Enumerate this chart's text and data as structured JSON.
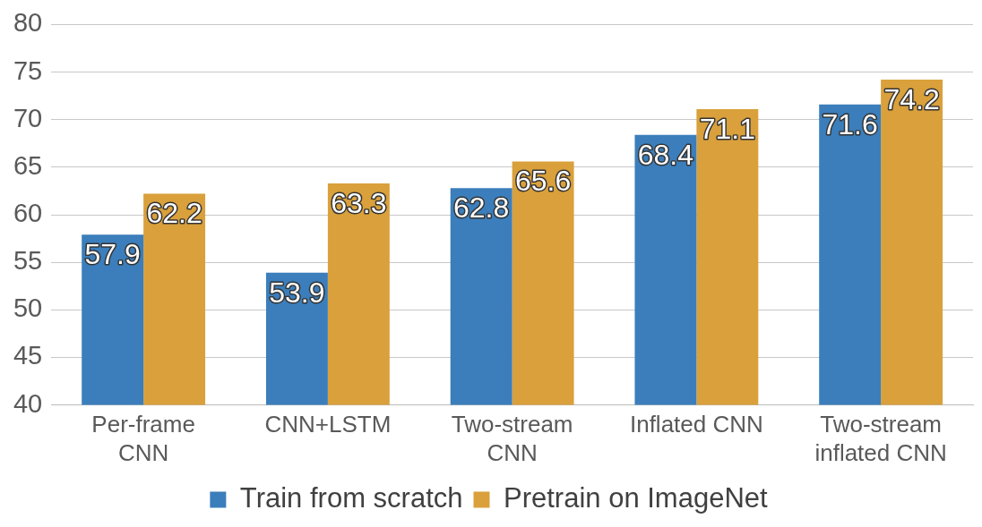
{
  "chart_data": {
    "type": "bar",
    "categories": [
      "Per-frame CNN",
      "CNN+LSTM",
      "Two-stream CNN",
      "Inflated CNN",
      "Two-stream inflated CNN"
    ],
    "series": [
      {
        "name": "Train from scratch",
        "color": "#3b7ebb",
        "values": [
          57.9,
          53.9,
          62.8,
          68.4,
          71.6
        ]
      },
      {
        "name": "Pretrain on ImageNet",
        "color": "#d9a03b",
        "values": [
          62.2,
          63.3,
          65.6,
          71.1,
          74.2
        ]
      }
    ],
    "ylim": [
      40,
      80
    ],
    "yticks": [
      40,
      45,
      50,
      55,
      60,
      65,
      70,
      75,
      80
    ],
    "grid": "y",
    "legend": "bottom",
    "data_labels": true
  }
}
